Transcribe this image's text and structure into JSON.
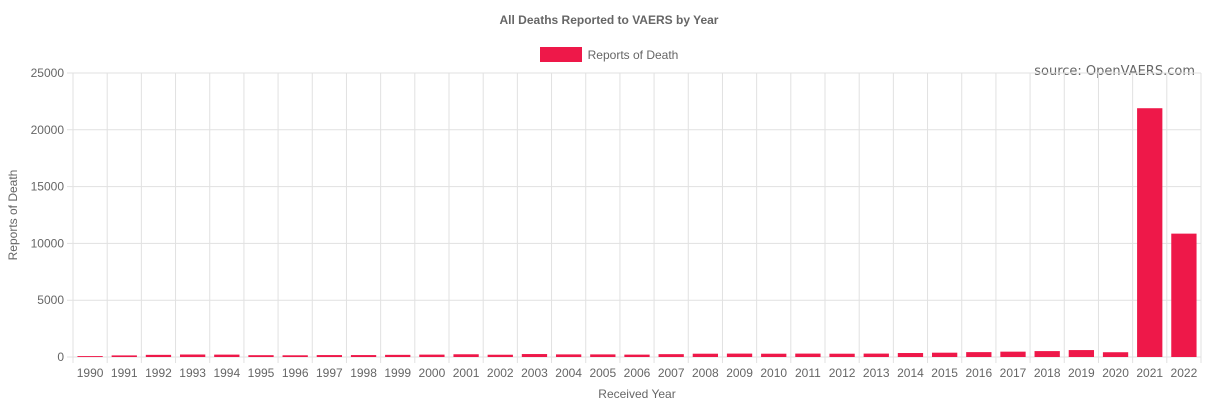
{
  "colors": {
    "bar": "#ee1849",
    "grid": "#e1e1e1",
    "text": "#666666",
    "axis": "#cccccc"
  },
  "source_text": "source: OpenVAERS.com",
  "chart_data": {
    "type": "bar",
    "title": "All Deaths Reported to VAERS by Year",
    "xlabel": "Received Year",
    "ylabel": "Reports of Death",
    "ylim": [
      0,
      25000
    ],
    "yticks": [
      0,
      5000,
      10000,
      15000,
      20000,
      25000
    ],
    "grid": true,
    "legend_position": "top-center",
    "categories": [
      "1990",
      "1991",
      "1992",
      "1993",
      "1994",
      "1995",
      "1996",
      "1997",
      "1998",
      "1999",
      "2000",
      "2001",
      "2002",
      "2003",
      "2004",
      "2005",
      "2006",
      "2007",
      "2008",
      "2009",
      "2010",
      "2011",
      "2012",
      "2013",
      "2014",
      "2015",
      "2016",
      "2017",
      "2018",
      "2019",
      "2020",
      "2021",
      "2022"
    ],
    "series": [
      {
        "name": "Reports of Death",
        "values": [
          80,
          140,
          190,
          220,
          210,
          160,
          150,
          170,
          170,
          190,
          210,
          240,
          200,
          260,
          230,
          230,
          210,
          250,
          290,
          300,
          290,
          300,
          290,
          300,
          350,
          380,
          430,
          470,
          520,
          610,
          420,
          21900,
          10860
        ]
      }
    ]
  }
}
